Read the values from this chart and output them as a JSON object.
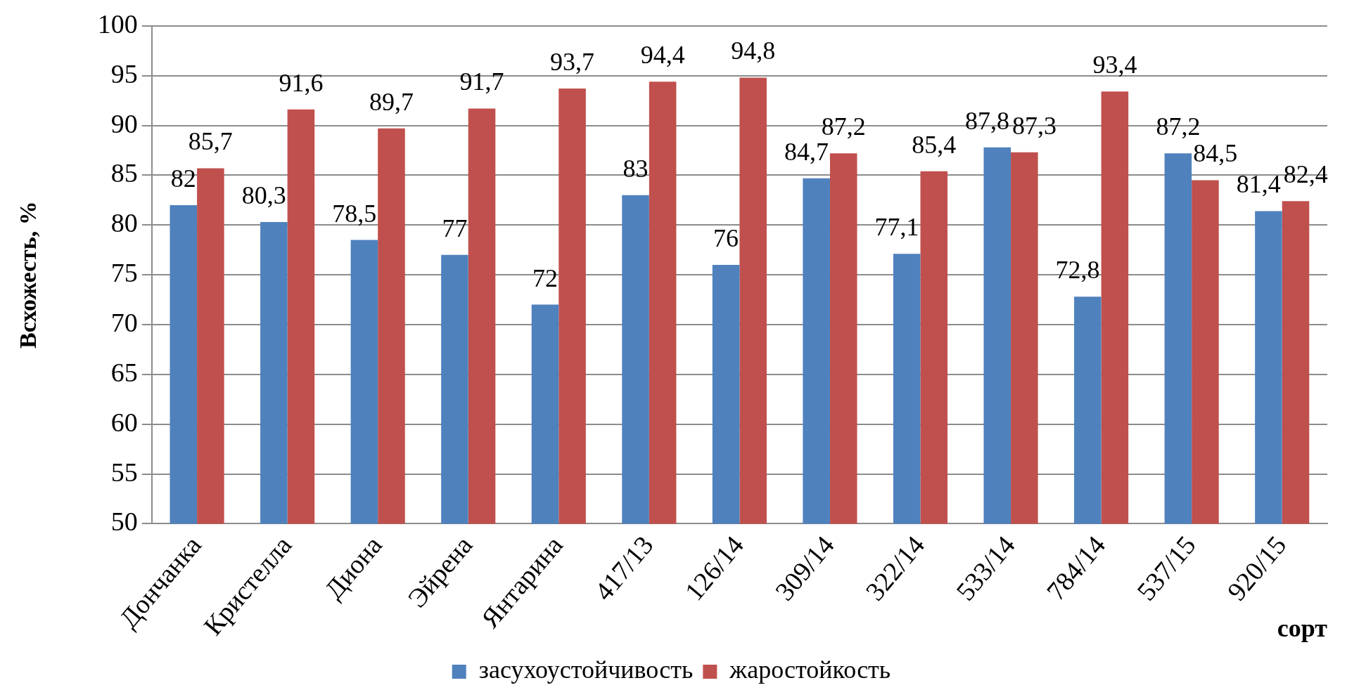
{
  "chart_data": {
    "type": "bar",
    "categories": [
      "Дончанка",
      "Кристелла",
      "Диона",
      "Эйрена",
      "Янтарина",
      "417/13",
      "126/14",
      "309/14",
      "322/14",
      "533/14",
      "784/14",
      "537/15",
      "920/15"
    ],
    "series": [
      {
        "name": "засухоустойчивость",
        "color": "#4f81bd",
        "values": [
          82,
          80.3,
          78.5,
          77,
          72,
          83,
          76,
          84.7,
          77.1,
          87.8,
          72.8,
          87.2,
          81.4
        ],
        "value_labels": [
          "82",
          "80,3",
          "78,5",
          "77",
          "72",
          "83",
          "76",
          "84,7",
          "77,1",
          "87,8",
          "72,8",
          "87,2",
          "81,4"
        ]
      },
      {
        "name": "жаростойкость",
        "color": "#c0504d",
        "values": [
          85.7,
          91.6,
          89.7,
          91.7,
          93.7,
          94.4,
          94.8,
          87.2,
          85.4,
          87.3,
          93.4,
          84.5,
          82.4
        ],
        "value_labels": [
          "85,7",
          "91,6",
          "89,7",
          "91,7",
          "93,7",
          "94,4",
          "94,8",
          "87,2",
          "85,4",
          "87,3",
          "93,4",
          "84,5",
          "82,4"
        ]
      }
    ],
    "ylim": [
      50,
      100
    ],
    "yticks": [
      50,
      55,
      60,
      65,
      70,
      75,
      80,
      85,
      90,
      95,
      100
    ],
    "ylabel": "Всхожесть, %",
    "xlabel": "сорт",
    "grid": "y",
    "legend": "bottom"
  }
}
